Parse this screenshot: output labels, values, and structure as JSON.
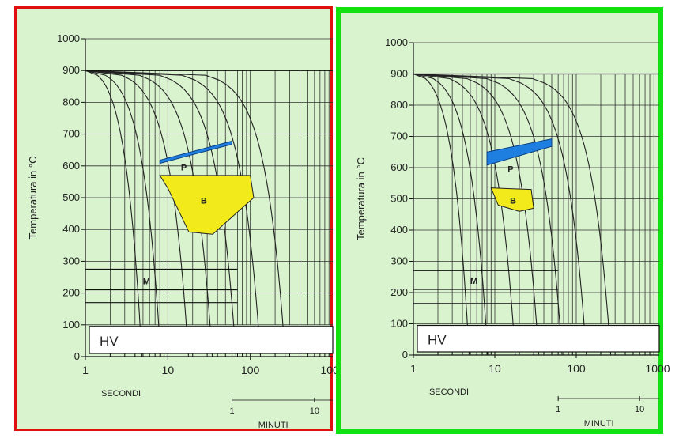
{
  "chart_data": [
    {
      "type": "line",
      "panel": "left",
      "border_color": "#e01010",
      "ylabel": "Temperatura in °C",
      "yticks": [
        "0",
        "100",
        "200",
        "300",
        "400",
        "500",
        "600",
        "700",
        "800",
        "900",
        "1000"
      ],
      "ylim": [
        0,
        1000
      ],
      "xscale": "log",
      "xticks": [
        "1",
        "10",
        "100",
        "1000"
      ],
      "xlim": [
        1,
        1000
      ],
      "xlabel": "SECONDI",
      "minutes_axis": {
        "label": "MINUTI",
        "ticks": [
          "1",
          "10"
        ]
      },
      "regions": [
        {
          "label": "P",
          "color": "#1f7fe0",
          "top": [
            [
              8,
              618
            ],
            [
              60,
              678
            ]
          ],
          "bottom": [
            [
              8,
              608
            ],
            [
              60,
              668
            ]
          ]
        },
        {
          "label": "B",
          "color": "#f2ea1a",
          "outline": [
            [
              8,
              570
            ],
            [
              100,
              570
            ],
            [
              110,
              500
            ],
            [
              35,
              385
            ],
            [
              18,
              392
            ],
            [
              10,
              530
            ]
          ]
        },
        {
          "label": "M",
          "temperatures": [
            275,
            210,
            170
          ]
        }
      ],
      "scale_box_label": "HV"
    },
    {
      "type": "line",
      "panel": "right",
      "border_color": "#11e012",
      "ylabel": "Temperatura in °C",
      "yticks": [
        "0",
        "100",
        "200",
        "300",
        "400",
        "500",
        "600",
        "700",
        "800",
        "900",
        "1000"
      ],
      "ylim": [
        0,
        1000
      ],
      "xscale": "log",
      "xticks": [
        "1",
        "10",
        "100",
        "1000"
      ],
      "xlim": [
        1,
        1000
      ],
      "xlabel": "SECONDI",
      "minutes_axis": {
        "label": "MINUTI",
        "ticks": [
          "1",
          "10"
        ]
      },
      "regions": [
        {
          "label": "P",
          "color": "#1f7fe0",
          "top": [
            [
              8,
              650
            ],
            [
              50,
              692
            ]
          ],
          "bottom": [
            [
              8,
              608
            ],
            [
              50,
              668
            ]
          ]
        },
        {
          "label": "B",
          "color": "#f2ea1a",
          "outline": [
            [
              9,
              535
            ],
            [
              28,
              530
            ],
            [
              30,
              470
            ],
            [
              20,
              460
            ],
            [
              11,
              480
            ]
          ]
        },
        {
          "label": "M",
          "temperatures": [
            270,
            210,
            165
          ]
        }
      ],
      "scale_box_label": "HV"
    }
  ]
}
